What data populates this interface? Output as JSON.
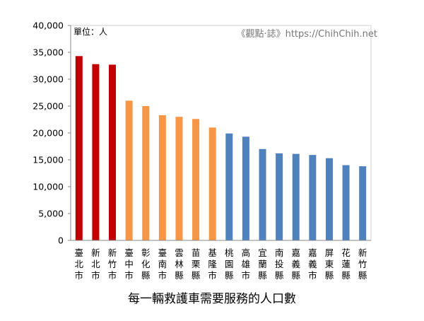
{
  "chart_data": {
    "type": "bar",
    "title": "每一輛救護車需要服務的人口數",
    "unit_label": "單位：人",
    "watermark": "《觀點·誌》https://ChihChih.net",
    "categories": [
      "臺北市",
      "新北市",
      "新竹市",
      "臺中市",
      "彰化縣",
      "臺南市",
      "雲林縣",
      "苗栗縣",
      "基隆市",
      "桃園縣",
      "高雄市",
      "宜蘭縣",
      "南投縣",
      "嘉義縣",
      "嘉義市",
      "屏東縣",
      "花蓮縣",
      "新竹縣"
    ],
    "values": [
      34300,
      32800,
      32700,
      26000,
      25000,
      23300,
      23000,
      22600,
      21000,
      19900,
      19300,
      17000,
      16200,
      16100,
      15900,
      15300,
      14000,
      13800
    ],
    "bar_colors": [
      "#C00000",
      "#C00000",
      "#C00000",
      "#F79646",
      "#F79646",
      "#F79646",
      "#F79646",
      "#F79646",
      "#F79646",
      "#4F81BD",
      "#4F81BD",
      "#4F81BD",
      "#4F81BD",
      "#4F81BD",
      "#4F81BD",
      "#4F81BD",
      "#4F81BD",
      "#4F81BD"
    ],
    "y_ticks": [
      "0",
      "5,000",
      "10,000",
      "15,000",
      "20,000",
      "25,000",
      "30,000",
      "35,000",
      "40,000"
    ],
    "ylim": [
      0,
      40000
    ],
    "grid": false,
    "legend": "none"
  }
}
